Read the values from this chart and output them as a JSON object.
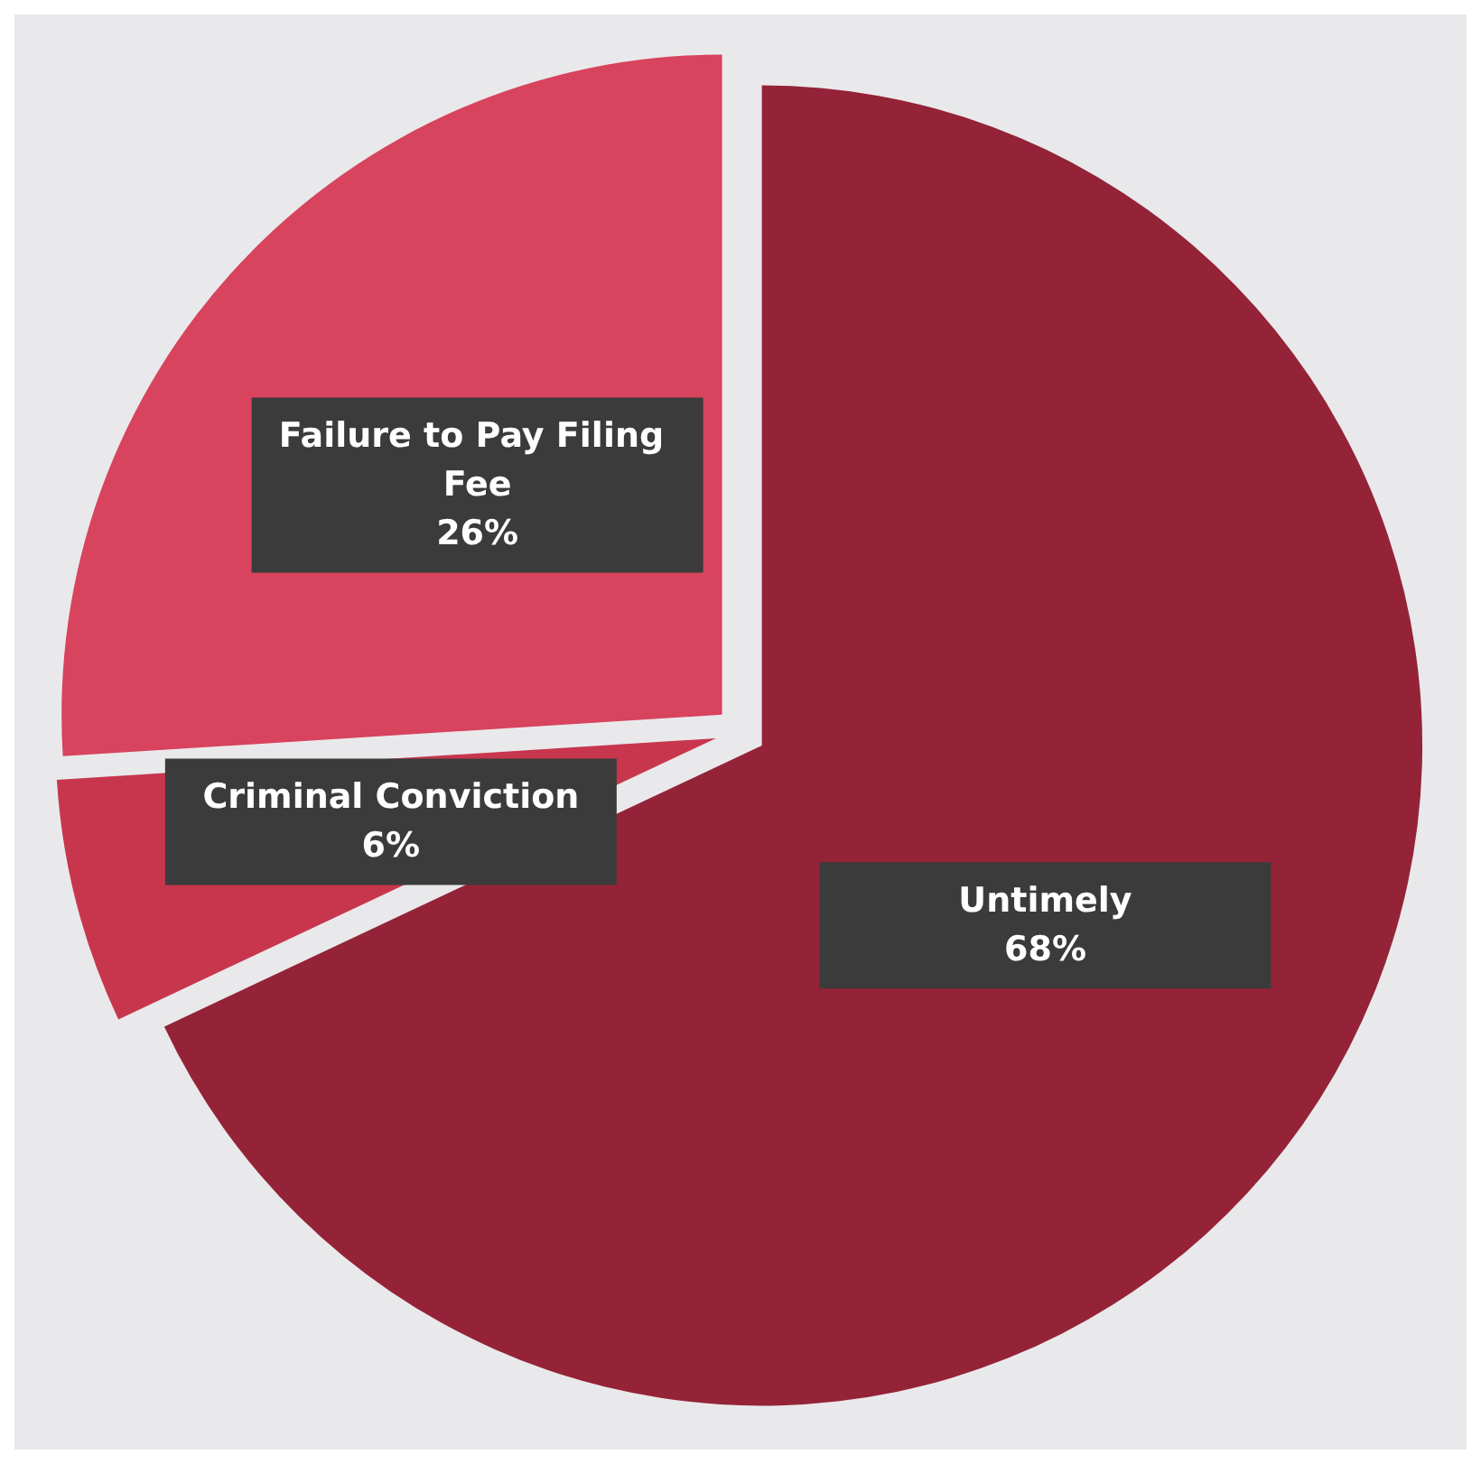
{
  "chart_data": {
    "type": "pie",
    "categories": [
      "Untimely",
      "Criminal Conviction",
      "Failure to Pay Filing Fee"
    ],
    "values": [
      68,
      6,
      26
    ],
    "value_labels": [
      "68%",
      "6%",
      "26%"
    ],
    "colors": [
      "#952338",
      "#c8364e",
      "#d8435d"
    ]
  }
}
